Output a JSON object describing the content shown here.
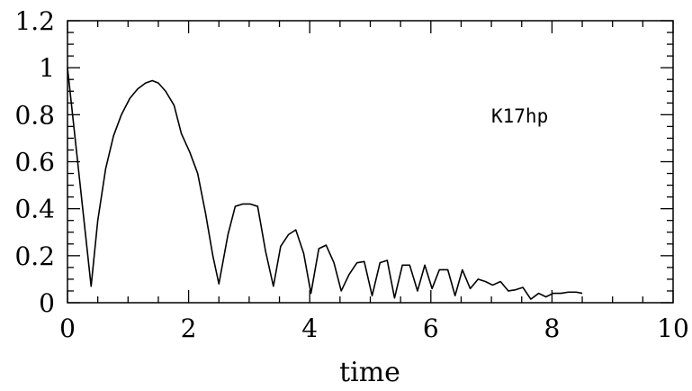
{
  "chart_data": {
    "type": "line",
    "title": "",
    "xlabel": "time",
    "ylabel": "",
    "xlim": [
      0,
      10
    ],
    "ylim": [
      0,
      1.2
    ],
    "grid": false,
    "annotation": "K17hp",
    "x_ticks": [
      0,
      2,
      4,
      6,
      8,
      10
    ],
    "y_ticks": [
      0,
      0.2,
      0.4,
      0.6,
      0.8,
      1,
      1.2
    ],
    "x_tick_labels": [
      "0",
      "2",
      "4",
      "6",
      "8",
      "10"
    ],
    "y_tick_labels": [
      "0",
      "0.2",
      "0.4",
      "0.6",
      "0.8",
      "1",
      "1.2"
    ],
    "line_color": "#000000",
    "series": [
      {
        "x": [
          0,
          0.39,
          0.5,
          0.63,
          0.76,
          0.89,
          1.03,
          1.16,
          1.29,
          1.4,
          1.5,
          1.62,
          1.76,
          1.88,
          2.02,
          2.15,
          2.28,
          2.4,
          2.5,
          2.65,
          2.77,
          2.89,
          3.02,
          3.14,
          3.27,
          3.4,
          3.52,
          3.65,
          3.77,
          3.9,
          4.02,
          4.15,
          4.27,
          4.4,
          4.52,
          4.65,
          4.78,
          4.9,
          5.03,
          5.16,
          5.28,
          5.4,
          5.53,
          5.65,
          5.78,
          5.9,
          6.02,
          6.14,
          6.28,
          6.4,
          6.52,
          6.65,
          6.78,
          6.9,
          7.02,
          7.15,
          7.28,
          7.4,
          7.52,
          7.65,
          7.78,
          7.9,
          8.02,
          8.15,
          8.27,
          8.4,
          8.5
        ],
        "y": [
          1.0,
          0.07,
          0.35,
          0.57,
          0.71,
          0.8,
          0.87,
          0.91,
          0.935,
          0.945,
          0.935,
          0.9,
          0.84,
          0.72,
          0.64,
          0.55,
          0.38,
          0.2,
          0.08,
          0.29,
          0.41,
          0.42,
          0.42,
          0.41,
          0.22,
          0.07,
          0.24,
          0.29,
          0.31,
          0.21,
          0.04,
          0.23,
          0.245,
          0.17,
          0.05,
          0.12,
          0.17,
          0.175,
          0.03,
          0.17,
          0.18,
          0.02,
          0.16,
          0.16,
          0.05,
          0.16,
          0.06,
          0.14,
          0.14,
          0.03,
          0.14,
          0.06,
          0.1,
          0.09,
          0.075,
          0.09,
          0.05,
          0.055,
          0.065,
          0.015,
          0.04,
          0.025,
          0.04,
          0.04,
          0.045,
          0.045,
          0.04
        ]
      }
    ]
  }
}
